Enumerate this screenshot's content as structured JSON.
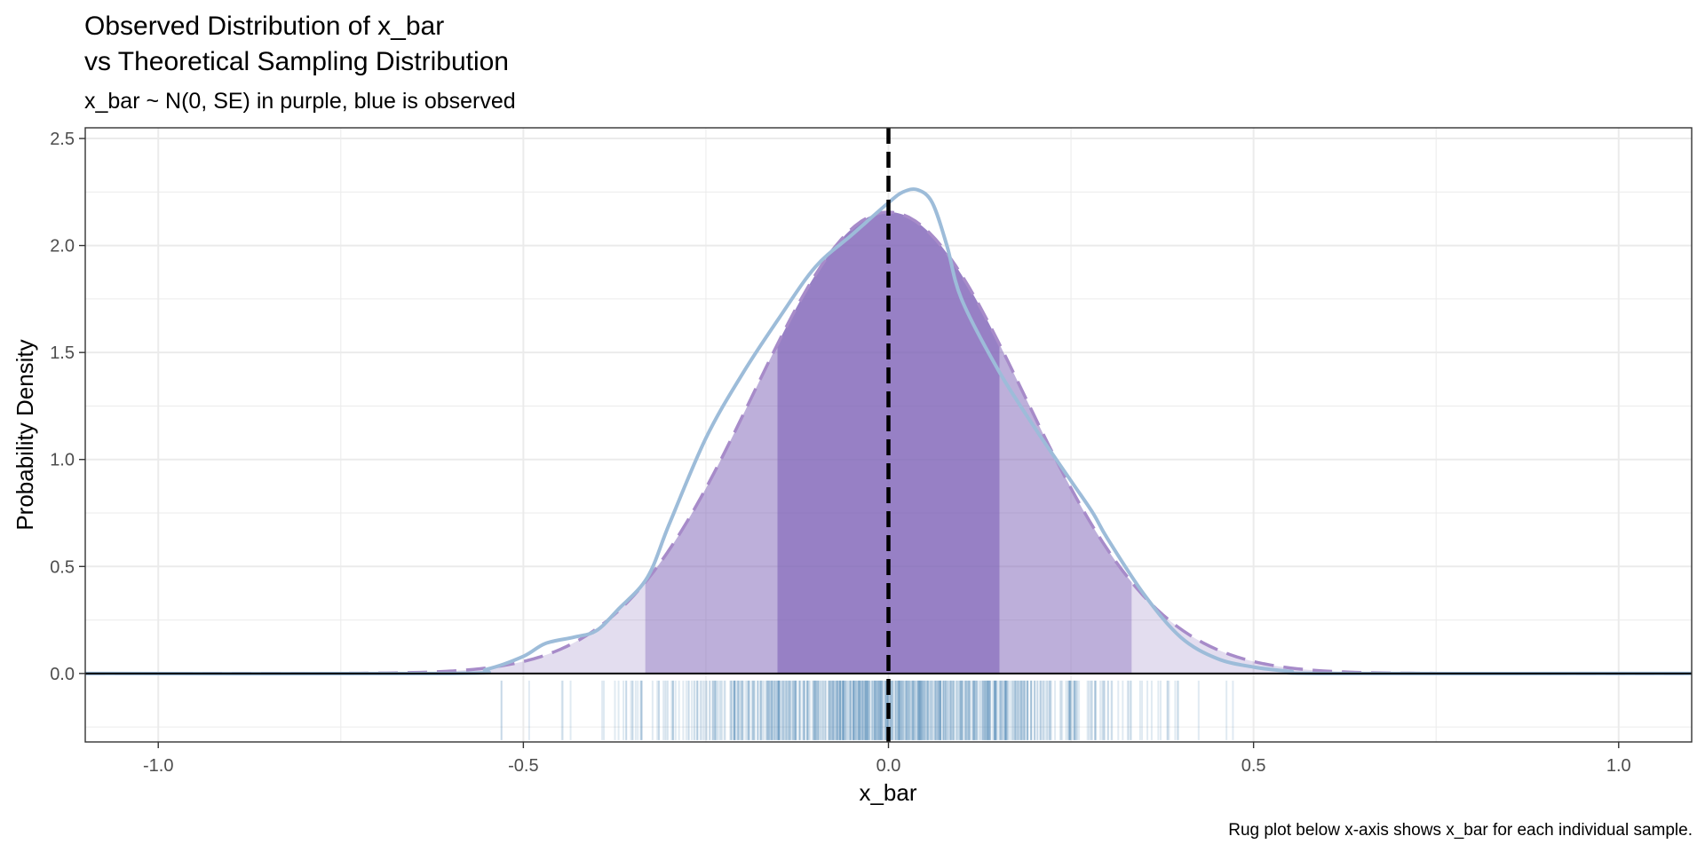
{
  "chart_data": {
    "type": "area",
    "title_lines": [
      "Observed Distribution of x_bar",
      "vs Theoretical Sampling Distribution"
    ],
    "subtitle": "x_bar ~ N(0, SE) in purple, blue is observed",
    "xlabel": "x_bar",
    "ylabel": "Probability Density",
    "caption": "Rug plot below x-axis shows x_bar for each individual sample.",
    "xlim": [
      -1.1,
      1.1
    ],
    "ylim": [
      -0.32,
      2.55
    ],
    "x_ticks": [
      -1.0,
      -0.5,
      0.0,
      0.5,
      1.0
    ],
    "x_tick_labels": [
      "-1.0",
      "-0.5",
      "0.0",
      "0.5",
      "1.0"
    ],
    "y_ticks": [
      0.0,
      0.5,
      1.0,
      1.5,
      2.0,
      2.5
    ],
    "y_tick_labels": [
      "0.0",
      "0.5",
      "1.0",
      "1.5",
      "2.0",
      "2.5"
    ],
    "grid": true,
    "theoretical": {
      "distribution": "normal",
      "mean": 0,
      "sd": 0.185,
      "line_style": "dashed",
      "bands": [
        {
          "from": -1.1,
          "to": 1.1,
          "opacity": 0.22
        },
        {
          "from": -0.333,
          "to": 0.333,
          "opacity": 0.38
        },
        {
          "from": -0.152,
          "to": 0.152,
          "opacity": 0.62
        }
      ]
    },
    "observed_density": {
      "x": [
        -1.1,
        -0.6,
        -0.55,
        -0.5,
        -0.47,
        -0.43,
        -0.4,
        -0.37,
        -0.33,
        -0.3,
        -0.25,
        -0.2,
        -0.15,
        -0.1,
        -0.05,
        0.0,
        0.02,
        0.04,
        0.06,
        0.08,
        0.1,
        0.15,
        0.2,
        0.25,
        0.28,
        0.3,
        0.35,
        0.4,
        0.45,
        0.5,
        0.55,
        0.6,
        1.1
      ],
      "y": [
        0.0,
        0.0,
        0.02,
        0.08,
        0.14,
        0.17,
        0.2,
        0.3,
        0.45,
        0.7,
        1.1,
        1.4,
        1.66,
        1.9,
        2.05,
        2.2,
        2.25,
        2.26,
        2.2,
        2.0,
        1.75,
        1.42,
        1.15,
        0.9,
        0.75,
        0.63,
        0.37,
        0.17,
        0.07,
        0.03,
        0.01,
        0.0,
        0.0
      ]
    },
    "vline": {
      "x": 0.0,
      "style": "dashed"
    },
    "rug": {
      "n": 700,
      "mean": 0.0,
      "sd": 0.17,
      "min": -0.53,
      "max": 0.6
    },
    "colors": {
      "theoretical_fill": "#8064b8",
      "theoretical_line": "#a78bc9",
      "observed_line": "#9dbcd9",
      "rug": "#4682b4",
      "vline": "#000000",
      "grid": "#ebebeb",
      "axis_text": "#4d4d4d"
    }
  }
}
